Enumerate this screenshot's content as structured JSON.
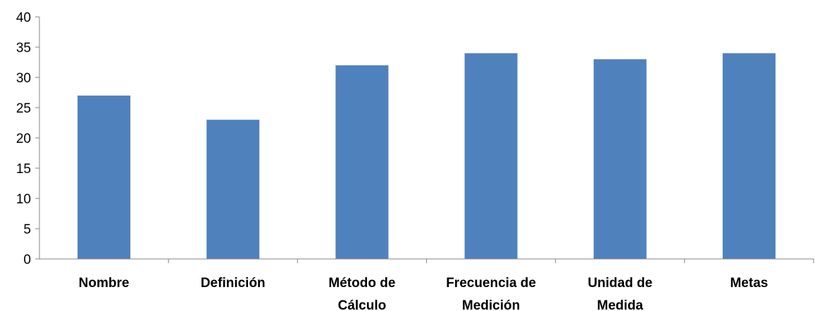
{
  "chart_data": {
    "type": "bar",
    "title": "",
    "xlabel": "",
    "ylabel": "",
    "categories": [
      [
        "Nombre"
      ],
      [
        "Definición"
      ],
      [
        "Método de",
        "Cálculo"
      ],
      [
        "Frecuencia de",
        "Medición"
      ],
      [
        "Unidad de",
        "Medida"
      ],
      [
        "Metas"
      ]
    ],
    "values": [
      27,
      23,
      32,
      34,
      33,
      34
    ],
    "ylim": [
      0,
      40
    ],
    "yticks": [
      0,
      5,
      10,
      15,
      20,
      25,
      30,
      35,
      40
    ],
    "grid": false,
    "legend": "none",
    "bar_color": "#4F81BD"
  }
}
